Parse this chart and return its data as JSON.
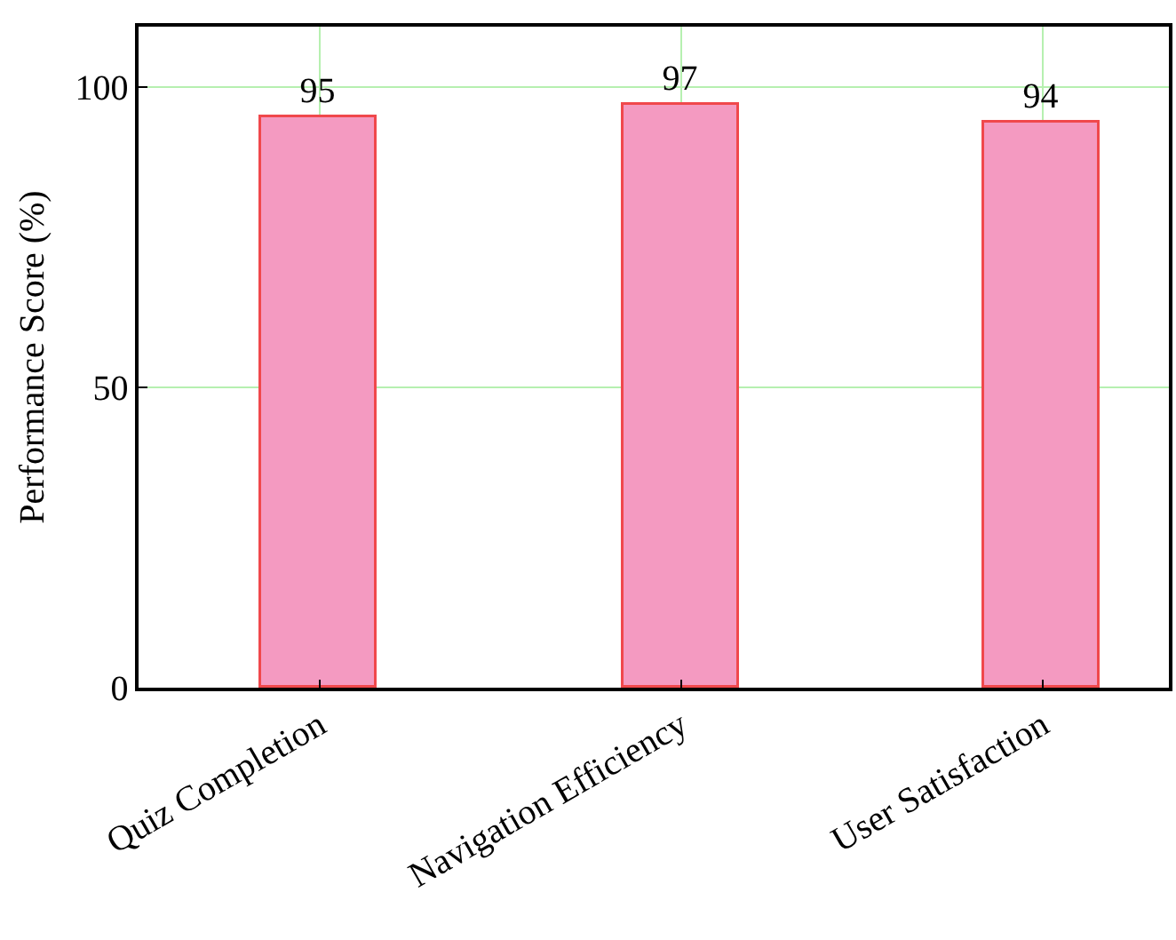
{
  "chart_data": {
    "type": "bar",
    "ylabel": "Performance Score (%)",
    "categories": [
      "Quiz Completion",
      "Navigation Efficiency",
      "User Satisfaction"
    ],
    "values": [
      95,
      97,
      94
    ],
    "color": "#f49ac1",
    "ylim": [
      0,
      110
    ],
    "yticks": [
      0,
      50,
      100
    ],
    "grid": true,
    "data_labels": true
  }
}
